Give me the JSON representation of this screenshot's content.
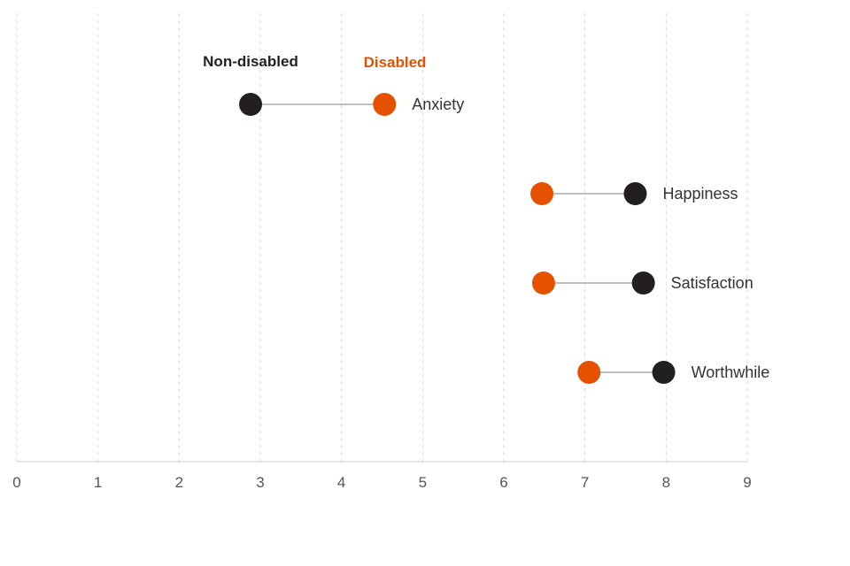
{
  "chart_data": {
    "type": "dumbbell",
    "xlim": [
      0,
      9
    ],
    "ticks": [
      0,
      1,
      2,
      3,
      4,
      5,
      6,
      7,
      8,
      9
    ],
    "grid": "vertical-dashed",
    "legend_placement": "top",
    "series": [
      {
        "name": "Non-disabled",
        "color": "#231f20"
      },
      {
        "name": "Disabled",
        "color": "#e65100"
      }
    ],
    "categories": [
      {
        "label": "Anxiety",
        "non_disabled": 2.88,
        "disabled": 4.53
      },
      {
        "label": "Happiness",
        "non_disabled": 7.62,
        "disabled": 6.47
      },
      {
        "label": "Satisfaction",
        "non_disabled": 7.72,
        "disabled": 6.49
      },
      {
        "label": "Worthwhile",
        "non_disabled": 7.97,
        "disabled": 7.05
      }
    ]
  },
  "colors": {
    "grid": "#dddddd",
    "axis": "#cccccc",
    "connector": "#999999"
  }
}
